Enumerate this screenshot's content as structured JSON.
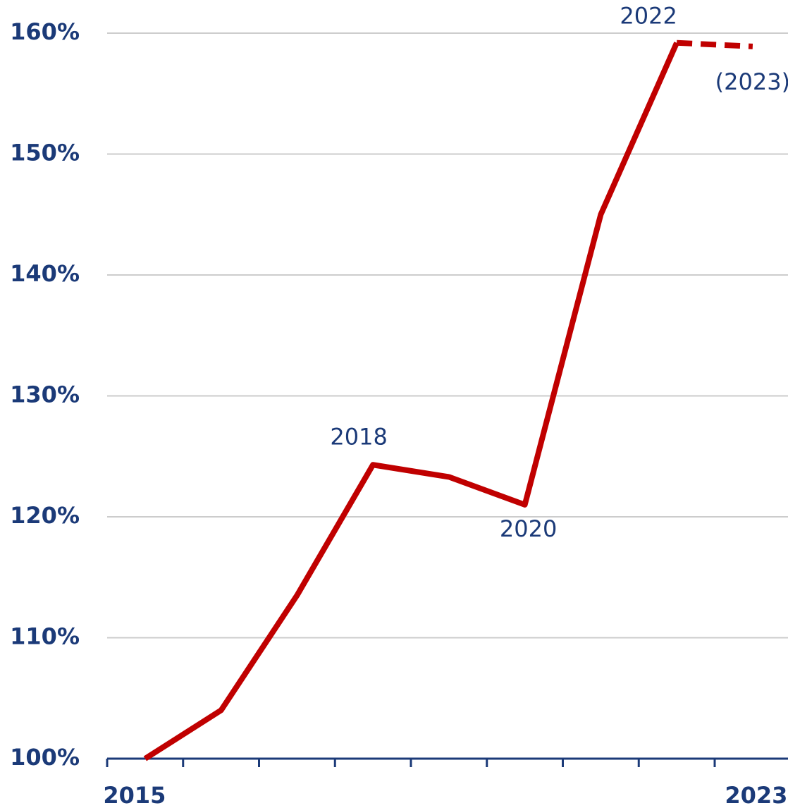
{
  "chart_data": {
    "type": "line",
    "categories": [
      "2015",
      null,
      null,
      null,
      null,
      null,
      null,
      null,
      "2023"
    ],
    "series": [
      {
        "color": "#c00000",
        "dashed": false,
        "values": [
          100,
          104,
          113.5,
          124.3,
          123.3,
          121,
          145,
          159.2,
          null
        ]
      },
      {
        "color": "#c00000",
        "dashed": true,
        "values": [
          null,
          null,
          null,
          null,
          null,
          null,
          null,
          159.2,
          158.9
        ]
      }
    ],
    "annotations": [
      {
        "text": "2018",
        "at": 3
      },
      {
        "text": "2020",
        "at": 5
      },
      {
        "text": "2022",
        "at": 7
      },
      {
        "text": "(2023)",
        "at": 8
      }
    ],
    "ylim": [
      100,
      160
    ],
    "yticks": [
      {
        "value": 100,
        "label": "100%"
      },
      {
        "value": 110,
        "label": "110%"
      },
      {
        "value": 120,
        "label": "120%"
      },
      {
        "value": 130,
        "label": "130%"
      },
      {
        "value": 140,
        "label": "140%"
      },
      {
        "value": 150,
        "label": "150%"
      },
      {
        "value": 160,
        "label": "160%"
      }
    ],
    "grid": true
  }
}
